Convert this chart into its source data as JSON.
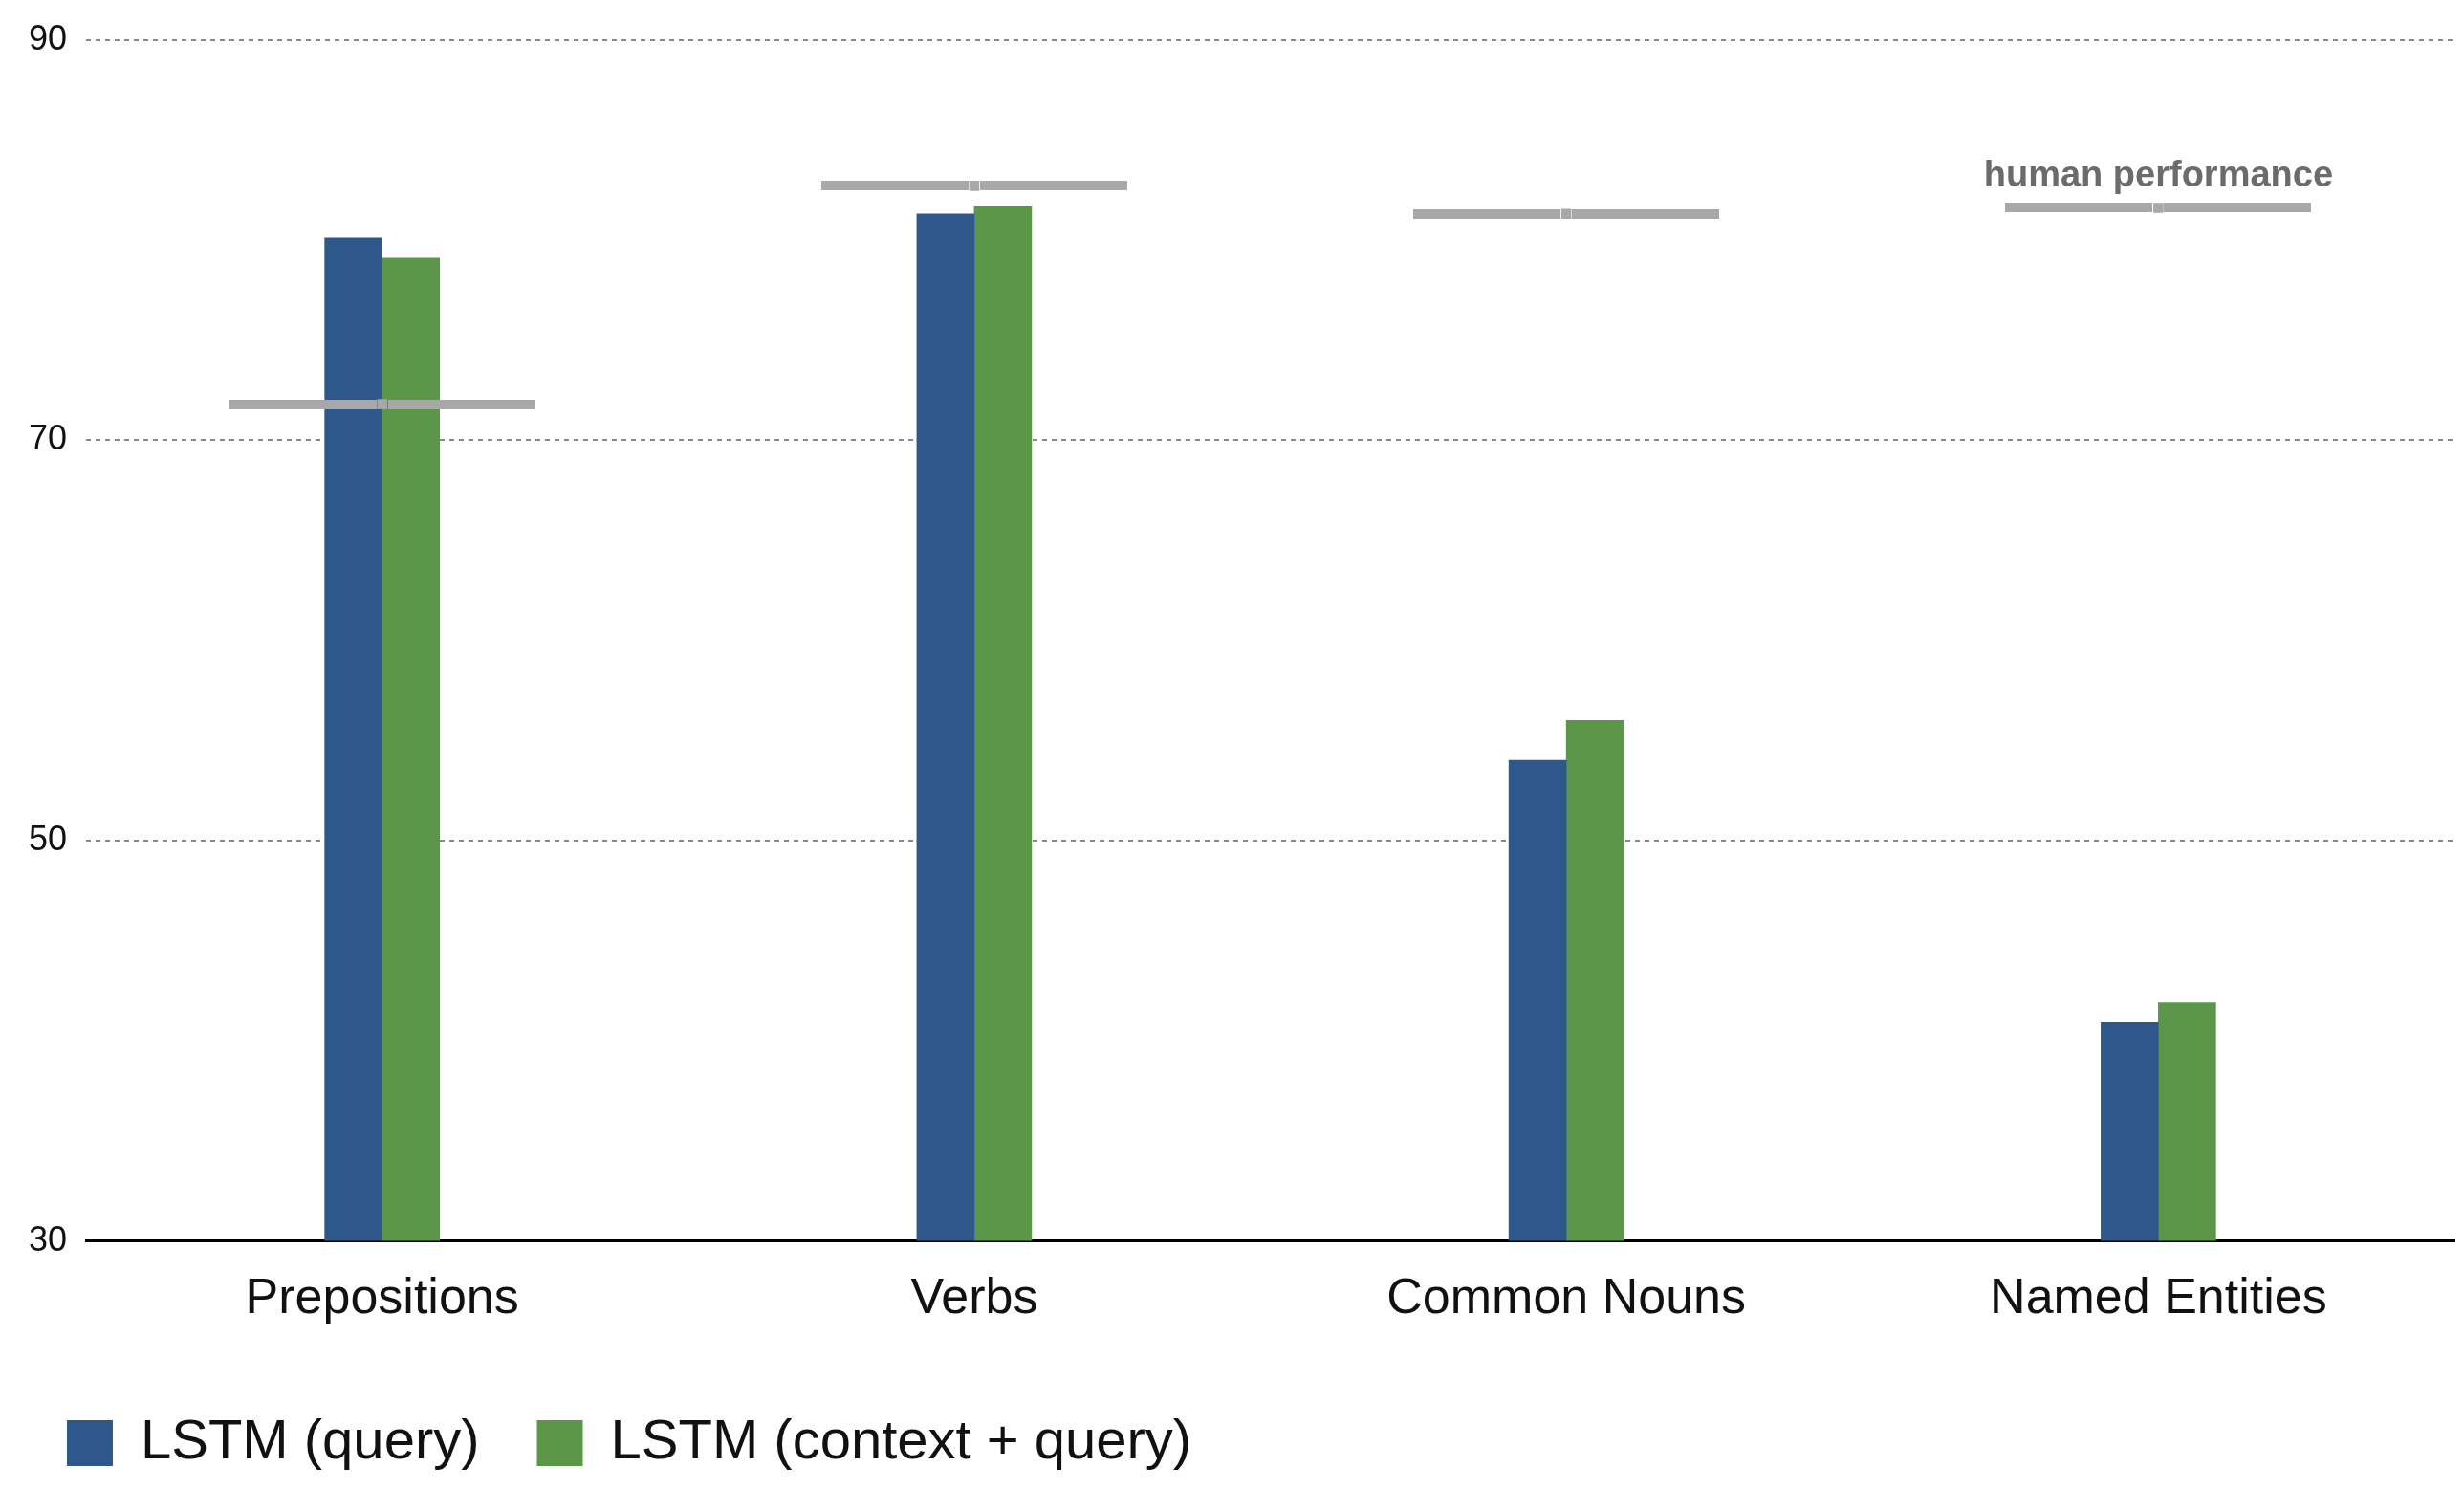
{
  "chart_data": {
    "type": "bar",
    "categories": [
      "Prepositions",
      "Verbs",
      "Common Nouns",
      "Named Entities"
    ],
    "series": [
      {
        "name": "LSTM (query)",
        "color": "#2e588c",
        "values": [
          80.1,
          81.3,
          54.0,
          40.9
        ]
      },
      {
        "name": "LSTM (context + query)",
        "color": "#5c9649",
        "values": [
          79.1,
          81.7,
          56.0,
          41.9
        ]
      },
      {
        "name": "human performance",
        "type": "scatter",
        "color": "#a8a8a8",
        "marker": "square",
        "values": [
          71.8,
          82.7,
          81.3,
          81.6
        ]
      }
    ],
    "ylim": [
      30,
      90
    ],
    "yticks": [
      30,
      50,
      70,
      90
    ],
    "grid": "y",
    "legend": "bottom left"
  }
}
